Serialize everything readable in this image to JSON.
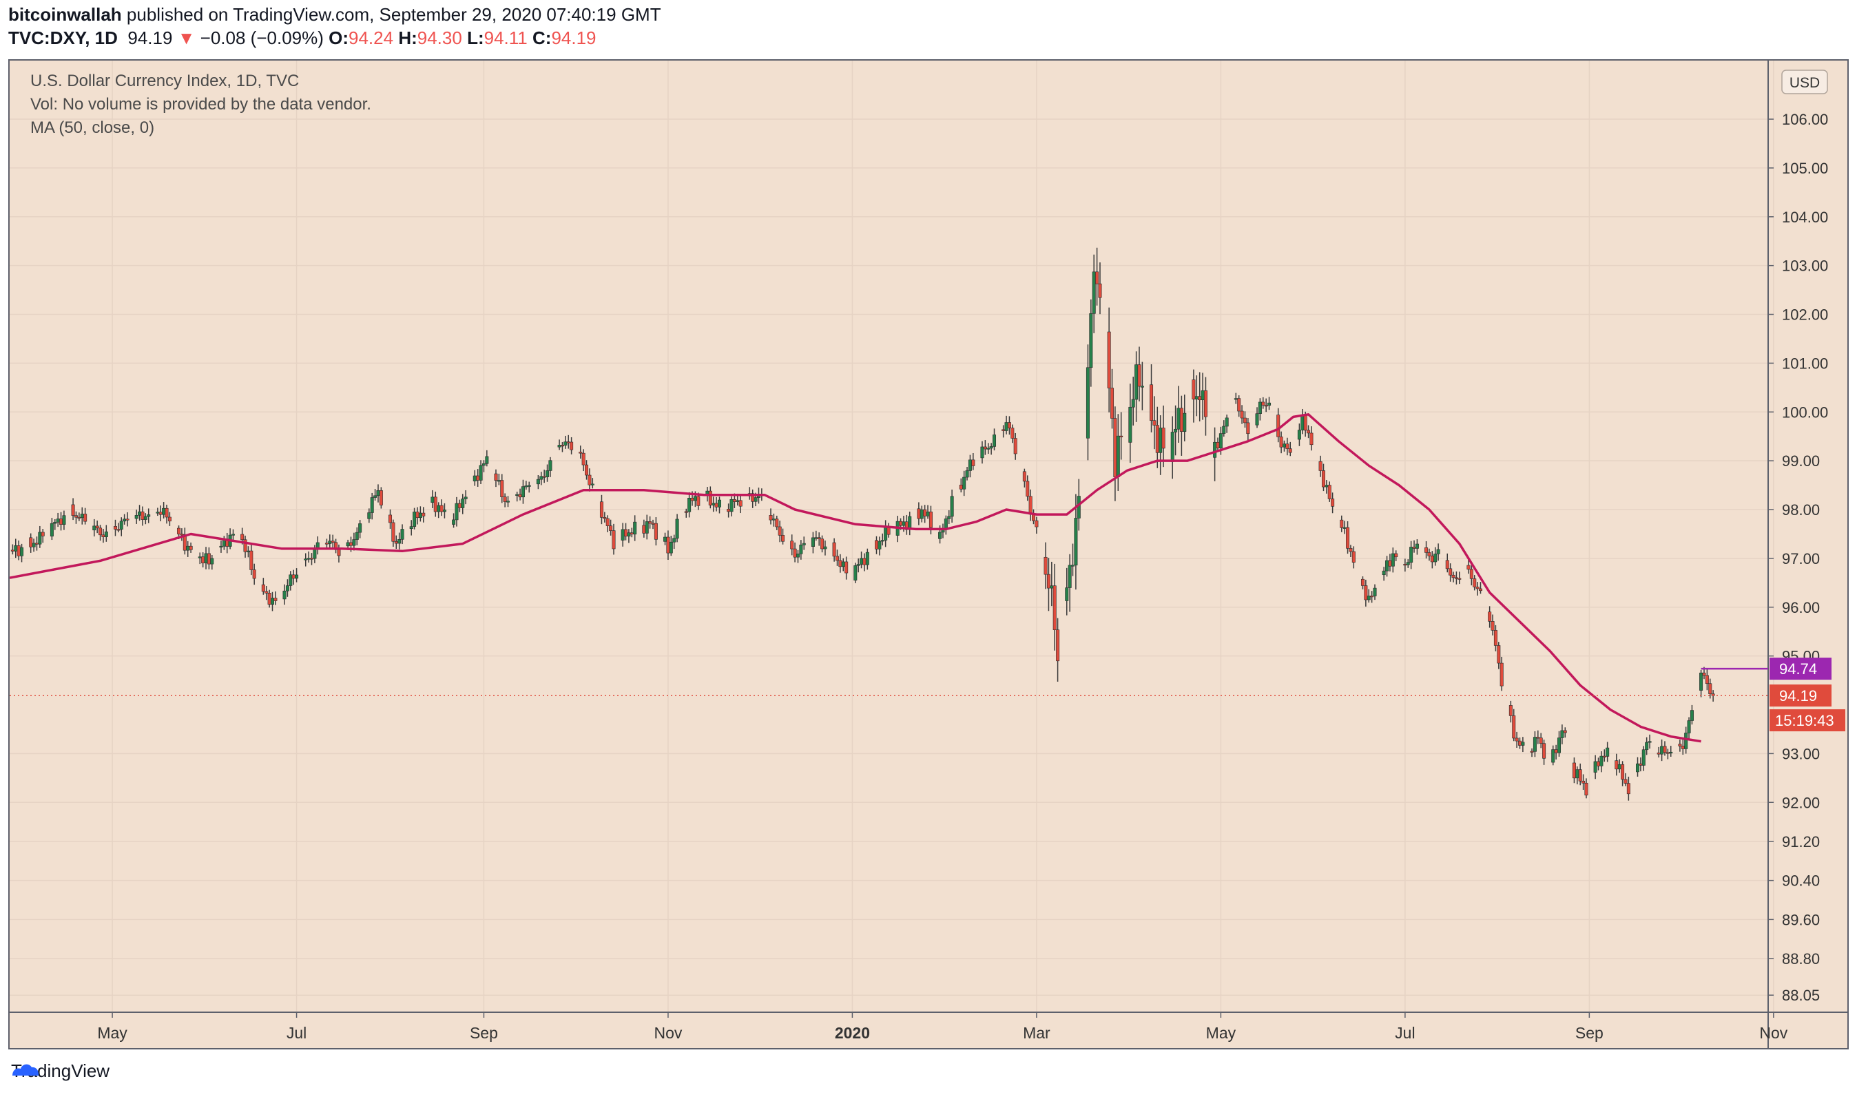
{
  "header": {
    "publisher": "bitcoinwallah",
    "published_text": " published on TradingView.com, September 29, 2020 07:40:19 GMT",
    "symbol": "TVC:DXY, 1D",
    "last": "94.19",
    "change_arrow": "▼",
    "change": "−0.08 (−0.09%)",
    "o_label": "O:",
    "o": "94.24",
    "h_label": "H:",
    "h": "94.30",
    "l_label": "L:",
    "l": "94.11",
    "c_label": "C:",
    "c": "94.19"
  },
  "legend": {
    "line1": "U.S. Dollar Currency Index, 1D, TVC",
    "line2": "Vol: No volume is provided by the data vendor.",
    "line3": "MA (50, close, 0)"
  },
  "currency_badge": "USD",
  "footer_brand": "TradingView",
  "colors": {
    "background": "#f2e0d0",
    "up": "#26804a",
    "down": "#e04b3c",
    "wick": "#3a3a3a",
    "ma": "#c2185b",
    "resistance": "#9c27b0",
    "price_tag": "#e04b3c"
  },
  "chart_data": {
    "type": "candlestick",
    "title": "U.S. Dollar Currency Index, 1D, TVC",
    "ylabel": "USD",
    "ylim": [
      87.7,
      107.2
    ],
    "y_ticks": [
      "106.00",
      "105.00",
      "104.00",
      "103.00",
      "102.00",
      "101.00",
      "100.00",
      "99.00",
      "98.00",
      "97.00",
      "96.00",
      "95.00",
      "93.00",
      "92.00",
      "91.20",
      "90.40",
      "89.60",
      "88.80",
      "88.05"
    ],
    "x_ticks": [
      "May",
      "Jul",
      "Sep",
      "Nov",
      "2020",
      "Mar",
      "May",
      "Jul",
      "Sep",
      "Nov"
    ],
    "x_tick_days": [
      34,
      95,
      157,
      218,
      279,
      340,
      401,
      462,
      523,
      584
    ],
    "price_path_day_close": [
      [
        0,
        97.1
      ],
      [
        10,
        97.4
      ],
      [
        20,
        98.0
      ],
      [
        30,
        97.5
      ],
      [
        40,
        97.8
      ],
      [
        50,
        98.0
      ],
      [
        58,
        97.3
      ],
      [
        66,
        96.9
      ],
      [
        72,
        97.4
      ],
      [
        76,
        97.6
      ],
      [
        82,
        96.4
      ],
      [
        88,
        96.1
      ],
      [
        96,
        96.8
      ],
      [
        104,
        97.4
      ],
      [
        110,
        97.1
      ],
      [
        116,
        97.6
      ],
      [
        122,
        98.4
      ],
      [
        128,
        97.3
      ],
      [
        134,
        97.8
      ],
      [
        140,
        98.2
      ],
      [
        146,
        97.7
      ],
      [
        152,
        98.5
      ],
      [
        158,
        99.0
      ],
      [
        164,
        98.2
      ],
      [
        170,
        98.4
      ],
      [
        176,
        98.6
      ],
      [
        182,
        99.4
      ],
      [
        188,
        99.2
      ],
      [
        194,
        98.3
      ],
      [
        200,
        97.3
      ],
      [
        206,
        97.6
      ],
      [
        212,
        97.7
      ],
      [
        218,
        97.2
      ],
      [
        224,
        98.1
      ],
      [
        230,
        98.3
      ],
      [
        236,
        98.0
      ],
      [
        242,
        98.2
      ],
      [
        248,
        98.3
      ],
      [
        254,
        97.6
      ],
      [
        260,
        97.1
      ],
      [
        266,
        97.4
      ],
      [
        272,
        97.2
      ],
      [
        278,
        96.6
      ],
      [
        284,
        97.1
      ],
      [
        290,
        97.5
      ],
      [
        296,
        97.7
      ],
      [
        302,
        98.0
      ],
      [
        308,
        97.4
      ],
      [
        312,
        98.2
      ],
      [
        318,
        98.9
      ],
      [
        324,
        99.3
      ],
      [
        330,
        99.8
      ],
      [
        334,
        99.0
      ],
      [
        338,
        98.0
      ],
      [
        342,
        97.2
      ],
      [
        345,
        96.1
      ],
      [
        347,
        95.0
      ],
      [
        350,
        96.3
      ],
      [
        354,
        98.2
      ],
      [
        356,
        99.8
      ],
      [
        358,
        102.1
      ],
      [
        360,
        102.8
      ],
      [
        362,
        102.0
      ],
      [
        364,
        100.5
      ],
      [
        366,
        99.1
      ],
      [
        370,
        99.8
      ],
      [
        374,
        100.8
      ],
      [
        378,
        99.9
      ],
      [
        382,
        99.2
      ],
      [
        386,
        99.6
      ],
      [
        390,
        100.2
      ],
      [
        394,
        100.5
      ],
      [
        396,
        99.8
      ],
      [
        398,
        99.4
      ],
      [
        400,
        99.2
      ],
      [
        402,
        99.8
      ],
      [
        406,
        100.3
      ],
      [
        410,
        99.5
      ],
      [
        414,
        100.1
      ],
      [
        418,
        100.3
      ],
      [
        420,
        99.5
      ],
      [
        424,
        99.1
      ],
      [
        428,
        99.8
      ],
      [
        430,
        99.6
      ],
      [
        434,
        98.8
      ],
      [
        438,
        98.0
      ],
      [
        442,
        97.5
      ],
      [
        446,
        96.8
      ],
      [
        450,
        96.1
      ],
      [
        454,
        96.6
      ],
      [
        458,
        97.1
      ],
      [
        462,
        96.9
      ],
      [
        466,
        97.3
      ],
      [
        470,
        97.0
      ],
      [
        474,
        97.2
      ],
      [
        478,
        96.5
      ],
      [
        482,
        96.8
      ],
      [
        486,
        96.4
      ],
      [
        490,
        95.8
      ],
      [
        494,
        94.5
      ],
      [
        498,
        93.4
      ],
      [
        502,
        93.0
      ],
      [
        506,
        93.3
      ],
      [
        510,
        92.8
      ],
      [
        514,
        93.5
      ],
      [
        518,
        92.6
      ],
      [
        522,
        92.3
      ],
      [
        526,
        92.9
      ],
      [
        530,
        93.0
      ],
      [
        534,
        92.5
      ],
      [
        536,
        92.3
      ],
      [
        540,
        92.9
      ],
      [
        542,
        93.2
      ],
      [
        546,
        93.0
      ],
      [
        550,
        93.1
      ],
      [
        554,
        93.2
      ],
      [
        556,
        93.6
      ],
      [
        560,
        94.6
      ],
      [
        562,
        94.45
      ],
      [
        564,
        94.19
      ]
    ],
    "ma50": [
      [
        0,
        96.6
      ],
      [
        30,
        96.95
      ],
      [
        60,
        97.5
      ],
      [
        90,
        97.2
      ],
      [
        110,
        97.2
      ],
      [
        130,
        97.15
      ],
      [
        150,
        97.3
      ],
      [
        170,
        97.9
      ],
      [
        190,
        98.4
      ],
      [
        210,
        98.4
      ],
      [
        230,
        98.3
      ],
      [
        250,
        98.3
      ],
      [
        260,
        98.0
      ],
      [
        280,
        97.7
      ],
      [
        300,
        97.6
      ],
      [
        310,
        97.6
      ],
      [
        320,
        97.75
      ],
      [
        330,
        98.0
      ],
      [
        340,
        97.9
      ],
      [
        350,
        97.9
      ],
      [
        360,
        98.4
      ],
      [
        370,
        98.8
      ],
      [
        380,
        99.0
      ],
      [
        390,
        99.0
      ],
      [
        400,
        99.2
      ],
      [
        410,
        99.4
      ],
      [
        420,
        99.65
      ],
      [
        425,
        99.9
      ],
      [
        430,
        99.95
      ],
      [
        440,
        99.4
      ],
      [
        450,
        98.9
      ],
      [
        460,
        98.5
      ],
      [
        470,
        98.0
      ],
      [
        480,
        97.3
      ],
      [
        490,
        96.3
      ],
      [
        500,
        95.7
      ],
      [
        510,
        95.1
      ],
      [
        520,
        94.4
      ],
      [
        530,
        93.9
      ],
      [
        540,
        93.55
      ],
      [
        550,
        93.35
      ],
      [
        560,
        93.25
      ]
    ],
    "last_price": 94.19,
    "last_price_label": "94.19",
    "countdown_label": "15:19:43",
    "resistance_level": 94.74,
    "resistance_label": "94.74",
    "resistance_start_day": 560
  }
}
